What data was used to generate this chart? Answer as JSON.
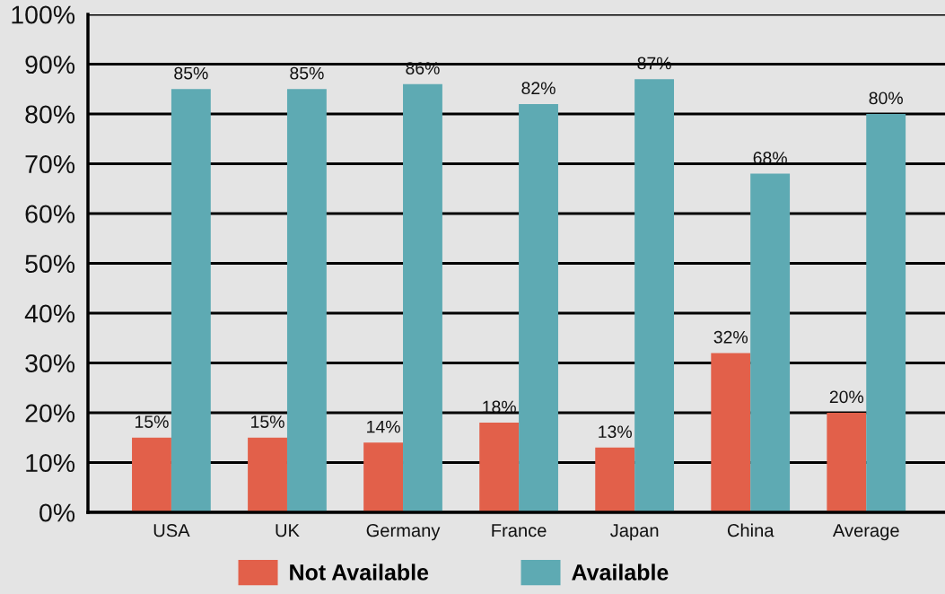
{
  "chart_data": {
    "type": "bar",
    "categories": [
      "USA",
      "UK",
      "Germany",
      "France",
      "Japan",
      "China",
      "Average"
    ],
    "series": [
      {
        "name": "Not Available",
        "color": "#e2604a",
        "values": [
          15,
          15,
          14,
          18,
          13,
          32,
          20
        ],
        "value_labels": [
          "15%",
          "15%",
          "14%",
          "18%",
          "13%",
          "32%",
          "20%"
        ]
      },
      {
        "name": "Available",
        "color": "#5eaab3",
        "values": [
          85,
          85,
          86,
          82,
          87,
          68,
          80
        ],
        "value_labels": [
          "85%",
          "85%",
          "86%",
          "82%",
          "87%",
          "68%",
          "80%"
        ]
      }
    ],
    "ylim": [
      0,
      100
    ],
    "yticks": [
      {
        "value": 0,
        "label": "0%"
      },
      {
        "value": 10,
        "label": "10%"
      },
      {
        "value": 20,
        "label": "20%"
      },
      {
        "value": 30,
        "label": "30%"
      },
      {
        "value": 40,
        "label": "40%"
      },
      {
        "value": 50,
        "label": "50%"
      },
      {
        "value": 60,
        "label": "60%"
      },
      {
        "value": 70,
        "label": "70%"
      },
      {
        "value": 80,
        "label": "80%"
      },
      {
        "value": 90,
        "label": "90%"
      },
      {
        "value": 100,
        "label": "100%"
      }
    ],
    "grid": "y",
    "legend": "bottom"
  }
}
